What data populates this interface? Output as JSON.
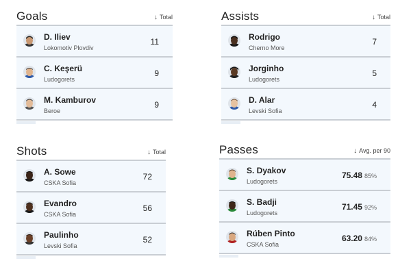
{
  "sections": {
    "goals": {
      "title": "Goals",
      "metric": "Total",
      "players": [
        {
          "name": "D. Iliev",
          "club": "Lokomotiv Plovdiv",
          "value": "11"
        },
        {
          "name": "C. Keşerü",
          "club": "Ludogorets",
          "value": "9"
        },
        {
          "name": "M. Kamburov",
          "club": "Beroe",
          "value": "9"
        }
      ]
    },
    "assists": {
      "title": "Assists",
      "metric": "Total",
      "players": [
        {
          "name": "Rodrigo",
          "club": "Cherno More",
          "value": "7"
        },
        {
          "name": "Jorginho",
          "club": "Ludogorets",
          "value": "5"
        },
        {
          "name": "D. Alar",
          "club": "Levski Sofia",
          "value": "4"
        }
      ]
    },
    "shots": {
      "title": "Shots",
      "metric": "Total",
      "players": [
        {
          "name": "A. Sowe",
          "club": "CSKA Sofia",
          "value": "72"
        },
        {
          "name": "Evandro",
          "club": "CSKA Sofia",
          "value": "56"
        },
        {
          "name": "Paulinho",
          "club": "Levski Sofia",
          "value": "52"
        }
      ]
    },
    "passes": {
      "title": "Passes",
      "metric": "Avg. per 90",
      "players": [
        {
          "name": "S. Dyakov",
          "club": "Ludogorets",
          "value": "75.48",
          "pct": "85%"
        },
        {
          "name": "S. Badji",
          "club": "Ludogorets",
          "value": "71.45",
          "pct": "92%"
        },
        {
          "name": "Rúben Pinto",
          "club": "CSKA Sofia",
          "value": "63.20",
          "pct": "84%"
        }
      ]
    }
  },
  "icons": {
    "sort": "sort-down-arrow-icon",
    "avatar": "player-avatar-icon"
  },
  "colors": {
    "row_tint": "#f3f8fd",
    "divider": "#c9ced4",
    "skin_light": "#e0b48e",
    "skin_dark": "#4a3020"
  }
}
